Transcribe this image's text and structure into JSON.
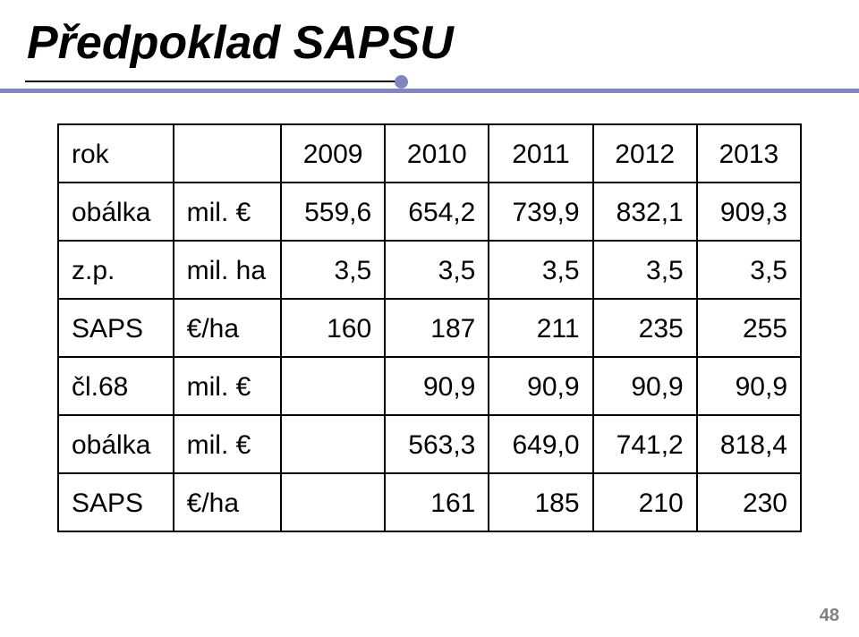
{
  "slide": {
    "title": "Předpoklad SAPSU",
    "page_number": "48",
    "colors": {
      "accent": "#8186c1",
      "text": "#000000",
      "page_num": "#7f7f7f",
      "bg": "#ffffff",
      "border": "#000000"
    }
  },
  "table": {
    "header": {
      "col0": "rok",
      "col1": "",
      "col2": "2009",
      "col3": "2010",
      "col4": "2011",
      "col5": "2012",
      "col6": "2013"
    },
    "rows": [
      {
        "label": "obálka",
        "unit": "mil. €",
        "v1": "559,6",
        "v2": "654,2",
        "v3": "739,9",
        "v4": "832,1",
        "v5": "909,3"
      },
      {
        "label": "z.p.",
        "unit": "mil. ha",
        "v1": "3,5",
        "v2": "3,5",
        "v3": "3,5",
        "v4": "3,5",
        "v5": "3,5"
      },
      {
        "label": "SAPS",
        "unit": "€/ha",
        "v1": "160",
        "v2": "187",
        "v3": "211",
        "v4": "235",
        "v5": "255"
      },
      {
        "label": "čl.68",
        "unit": "mil. €",
        "v1": "",
        "v2": "90,9",
        "v3": "90,9",
        "v4": "90,9",
        "v5": "90,9"
      },
      {
        "label": "obálka",
        "unit": "mil. €",
        "v1": "",
        "v2": "563,3",
        "v3": "649,0",
        "v4": "741,2",
        "v5": "818,4"
      },
      {
        "label": "SAPS",
        "unit": "€/ha",
        "v1": "",
        "v2": "161",
        "v3": "185",
        "v4": "210",
        "v5": "230"
      }
    ]
  }
}
